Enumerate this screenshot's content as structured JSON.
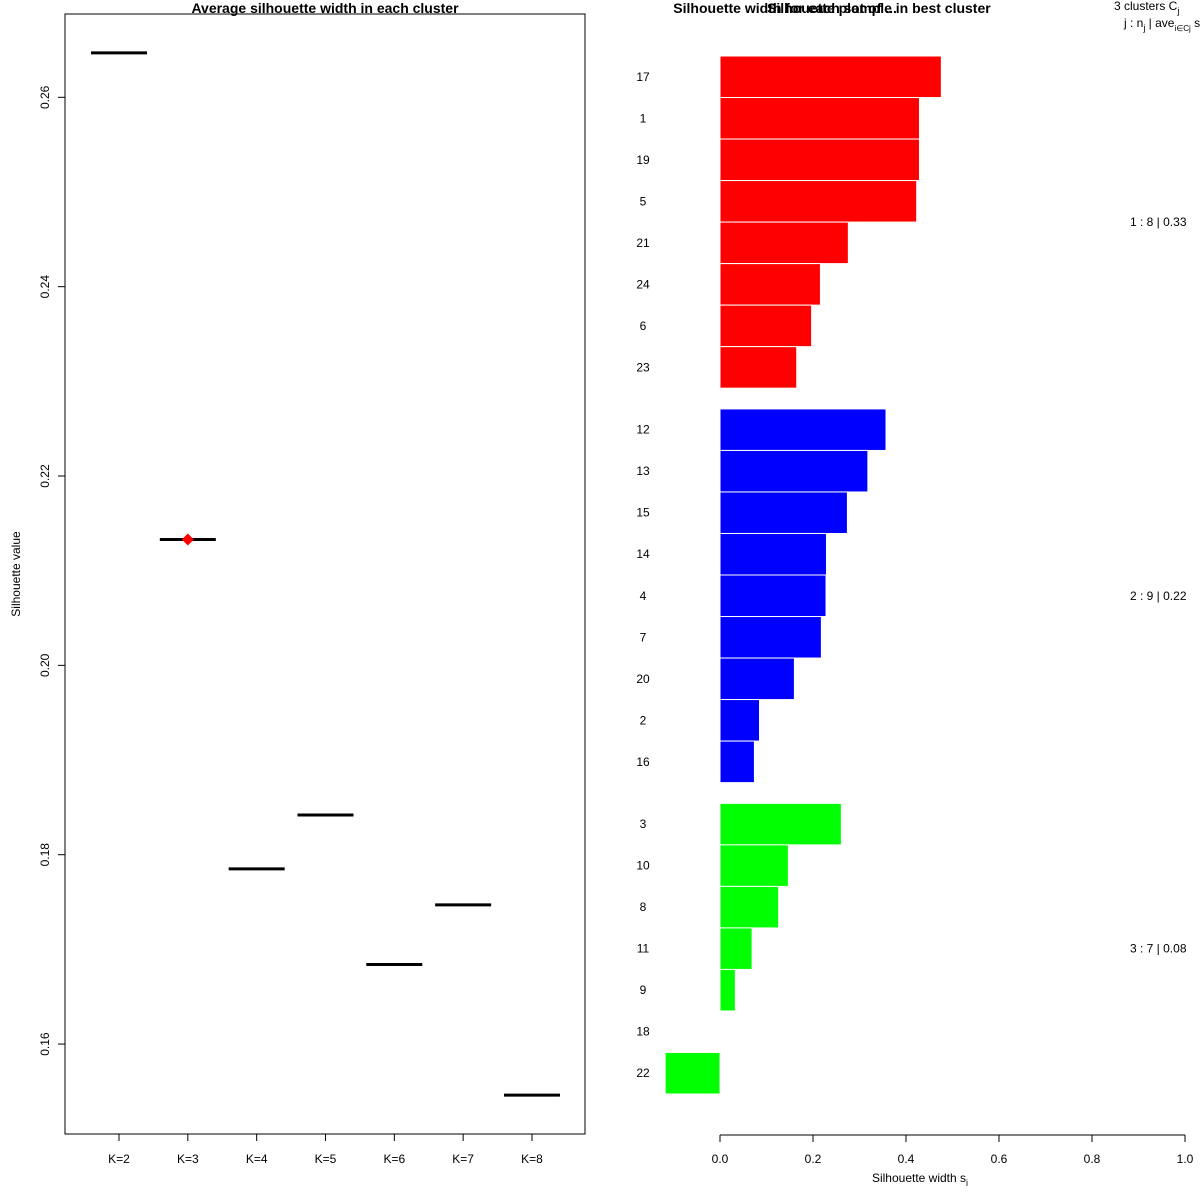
{
  "chart_data": [
    {
      "type": "scatter",
      "title": "Average silhouette width in each cluster",
      "xlabel": "",
      "ylabel": "Silhouette value",
      "ylim": [
        0.1505,
        0.2688
      ],
      "yticks": [
        0.16,
        0.18,
        0.2,
        0.22,
        0.24,
        0.26
      ],
      "ytick_labels": [
        "0.16",
        "0.18",
        "0.20",
        "0.22",
        "0.24",
        "0.26"
      ],
      "categories": [
        "K=2",
        "K=3",
        "K=4",
        "K=5",
        "K=6",
        "K=7",
        "K=8"
      ],
      "values": [
        0.2647,
        0.2133,
        0.1785,
        0.1842,
        0.1684,
        0.1747,
        0.1546
      ],
      "best_index": 1,
      "best_color": "#ff0000",
      "line_color": "#000000"
    },
    {
      "type": "bar",
      "orientation": "horizontal",
      "title": "Silhouette width for each sample in best cluster",
      "title_overlap": "Silhouette plot of ...",
      "xlabel": "Silhouette width s",
      "xlabel_sub": "i",
      "xlim": [
        0,
        1
      ],
      "xticks": [
        0,
        0.2,
        0.4,
        0.6,
        0.8,
        1.0
      ],
      "xtick_labels": [
        "0.0",
        "0.2",
        "0.4",
        "0.6",
        "0.8",
        "1.0"
      ],
      "header": {
        "line1_main": "3  clusters  C",
        "line1_sub": "j",
        "line2_a": "j :  n",
        "line2_sub1": "j",
        "line2_b": " | ave",
        "line2_sub2": "i∈Cj",
        "line2_c": "  s"
      },
      "clusters": [
        {
          "id": 1,
          "n": 8,
          "ave": "0.33",
          "color": "#ff0000",
          "label": "1 :   8  |  0.33",
          "samples": [
            "17",
            "1",
            "19",
            "5",
            "21",
            "24",
            "6",
            "23"
          ],
          "values": [
            0.476,
            0.429,
            0.429,
            0.423,
            0.276,
            0.216,
            0.197,
            0.165
          ]
        },
        {
          "id": 2,
          "n": 9,
          "ave": "0.22",
          "color": "#0000ff",
          "label": "2 :   9  |  0.22",
          "samples": [
            "12",
            "13",
            "15",
            "14",
            "4",
            "7",
            "20",
            "2",
            "16"
          ],
          "values": [
            0.357,
            0.318,
            0.274,
            0.229,
            0.228,
            0.218,
            0.16,
            0.085,
            0.074
          ]
        },
        {
          "id": 3,
          "n": 7,
          "ave": "0.08",
          "color": "#00ff00",
          "label": "3 :   7  |  0.08",
          "samples": [
            "3",
            "10",
            "8",
            "11",
            "9",
            "18",
            "22"
          ],
          "values": [
            0.261,
            0.147,
            0.126,
            0.069,
            0.033,
            0.0,
            -0.118
          ]
        }
      ]
    }
  ]
}
